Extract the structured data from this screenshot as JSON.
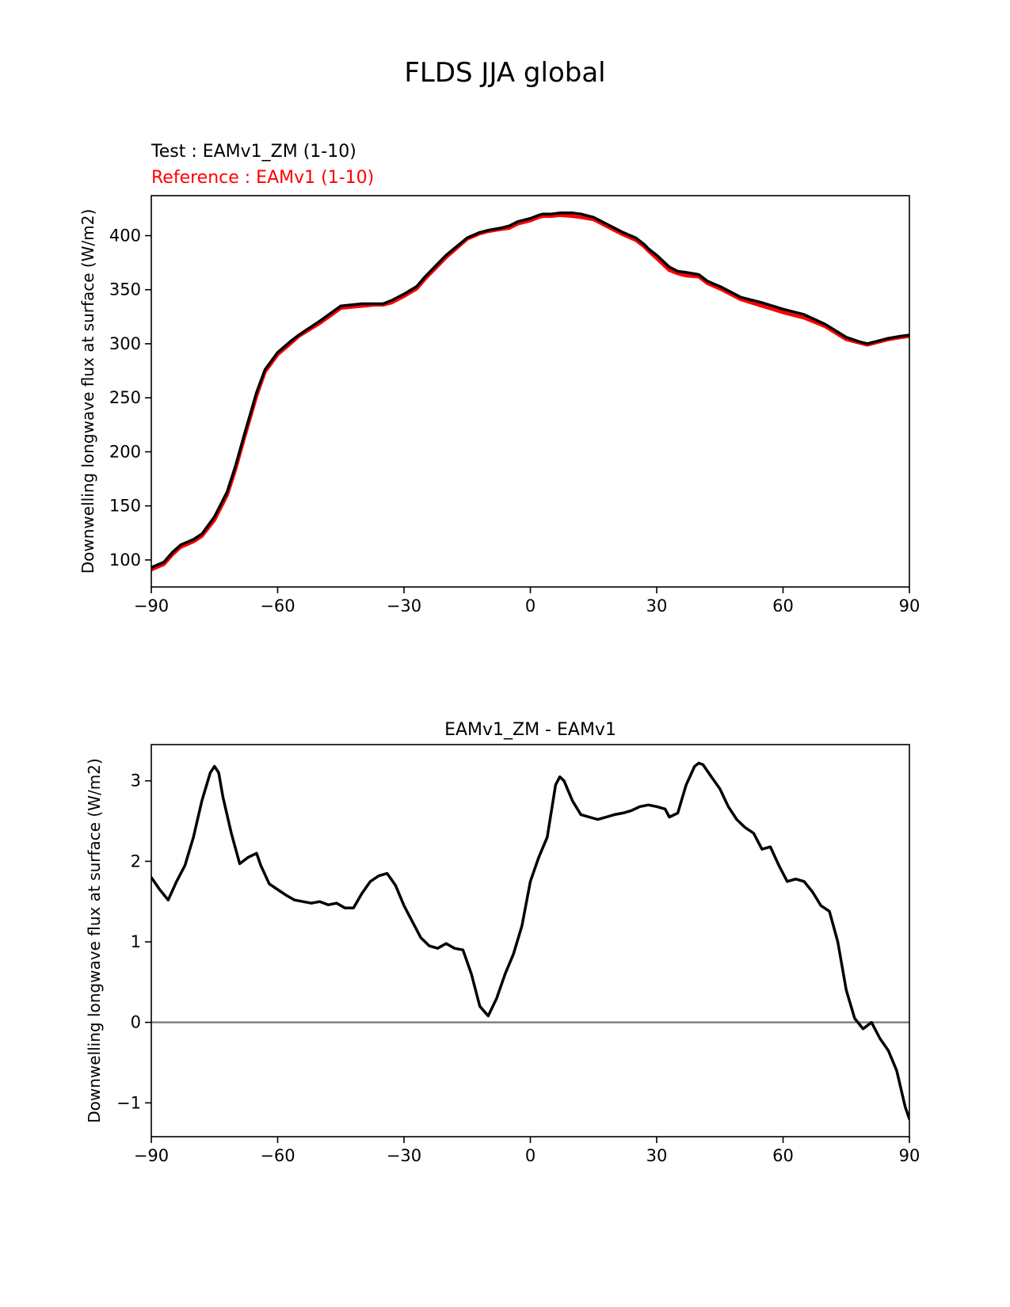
{
  "figure": {
    "title": "FLDS JJA global"
  },
  "chart_data": [
    {
      "type": "line",
      "title_test": "Test : EAMv1_ZM (1-10)",
      "title_reference": "Reference : EAMv1 (1-10)",
      "xlabel": "",
      "ylabel": "Downwelling longwave flux at surface (W/m2)",
      "xlim": [
        -90,
        90
      ],
      "ylim": [
        75,
        437
      ],
      "xticks": [
        -90,
        -60,
        -30,
        0,
        30,
        60,
        90
      ],
      "xtick_labels": [
        "−90",
        "−60",
        "−30",
        "0",
        "30",
        "60",
        "90"
      ],
      "yticks": [
        100,
        150,
        200,
        250,
        300,
        350,
        400
      ],
      "ytick_labels": [
        "100",
        "150",
        "200",
        "250",
        "300",
        "350",
        "400"
      ],
      "x": [
        -90,
        -87,
        -85,
        -83,
        -80,
        -78,
        -75,
        -72,
        -70,
        -68,
        -65,
        -63,
        -60,
        -57,
        -55,
        -50,
        -45,
        -40,
        -37,
        -35,
        -33,
        -30,
        -27,
        -25,
        -20,
        -15,
        -12,
        -10,
        -7,
        -5,
        -3,
        0,
        2,
        3,
        5,
        7,
        10,
        12,
        15,
        18,
        20,
        22,
        25,
        27,
        28,
        30,
        33,
        35,
        37,
        40,
        42,
        45,
        50,
        55,
        60,
        65,
        70,
        75,
        78,
        80,
        82,
        85,
        88,
        90
      ],
      "series": [
        {
          "name": "Test : EAMv1_ZM (1-10)",
          "color": "#000000",
          "values": [
            93,
            98,
            107,
            114,
            119,
            124,
            140,
            163,
            187,
            215,
            255,
            276,
            292,
            302,
            308,
            321,
            335,
            337,
            337,
            337,
            340,
            346,
            353,
            362,
            382,
            398,
            403,
            405,
            407,
            409,
            413,
            416,
            419,
            420,
            420,
            421,
            421,
            420,
            417,
            411,
            407,
            403,
            398,
            392,
            388,
            382,
            371,
            367,
            366,
            364,
            358,
            353,
            343,
            338,
            332,
            327,
            318,
            306,
            302,
            300,
            302,
            305,
            307,
            308
          ]
        },
        {
          "name": "Reference : EAMv1 (1-10)",
          "color": "#ff0000",
          "values": [
            91,
            96,
            105,
            112,
            117,
            122,
            137,
            160,
            184,
            212,
            252,
            274,
            290,
            300,
            307,
            319,
            333,
            335,
            336,
            336,
            338,
            344,
            351,
            360,
            380,
            397,
            402,
            404,
            406,
            407,
            411,
            414,
            417,
            418,
            418,
            419,
            418,
            417,
            415,
            409,
            405,
            401,
            396,
            390,
            386,
            379,
            368,
            365,
            363,
            362,
            356,
            351,
            341,
            335,
            329,
            324,
            316,
            304,
            301,
            299,
            301,
            304,
            306,
            307
          ]
        }
      ]
    },
    {
      "type": "line",
      "title": "EAMv1_ZM - EAMv1",
      "xlabel": "",
      "ylabel": "Downwelling longwave flux at surface (W/m2)",
      "xlim": [
        -90,
        90
      ],
      "ylim": [
        -1.42,
        3.45
      ],
      "xticks": [
        -90,
        -60,
        -30,
        0,
        30,
        60,
        90
      ],
      "xtick_labels": [
        "−90",
        "−60",
        "−30",
        "0",
        "30",
        "60",
        "90"
      ],
      "yticks": [
        -1,
        0,
        1,
        2,
        3
      ],
      "ytick_labels": [
        "−1",
        "0",
        "1",
        "2",
        "3"
      ],
      "zero_line": {
        "value": 0,
        "color": "#808080"
      },
      "x": [
        -90,
        -88,
        -86,
        -84,
        -82,
        -80,
        -78,
        -76,
        -75,
        -74,
        -73,
        -71,
        -69,
        -67,
        -65,
        -64,
        -62,
        -60,
        -58,
        -56,
        -54,
        -52,
        -50,
        -48,
        -46,
        -44,
        -42,
        -40,
        -38,
        -36,
        -34,
        -32,
        -30,
        -28,
        -26,
        -24,
        -22,
        -20,
        -18,
        -16,
        -14,
        -12,
        -10,
        -8,
        -6,
        -4,
        -2,
        0,
        2,
        4,
        6,
        7,
        8,
        10,
        12,
        14,
        16,
        18,
        20,
        22,
        24,
        26,
        28,
        30,
        32,
        33,
        35,
        37,
        39,
        40,
        41,
        43,
        45,
        47,
        49,
        51,
        53,
        55,
        57,
        59,
        61,
        63,
        65,
        67,
        69,
        71,
        73,
        75,
        77,
        79,
        81,
        83,
        85,
        87,
        89,
        90
      ],
      "series": [
        {
          "name": "EAMv1_ZM - EAMv1",
          "color": "#000000",
          "values": [
            1.8,
            1.65,
            1.52,
            1.75,
            1.95,
            2.3,
            2.75,
            3.1,
            3.18,
            3.1,
            2.8,
            2.35,
            1.97,
            2.05,
            2.1,
            1.95,
            1.72,
            1.65,
            1.58,
            1.52,
            1.5,
            1.48,
            1.5,
            1.46,
            1.48,
            1.42,
            1.42,
            1.6,
            1.75,
            1.82,
            1.85,
            1.7,
            1.45,
            1.25,
            1.05,
            0.95,
            0.92,
            0.98,
            0.92,
            0.9,
            0.6,
            0.2,
            0.08,
            0.3,
            0.6,
            0.85,
            1.2,
            1.75,
            2.05,
            2.3,
            2.95,
            3.05,
            3.0,
            2.75,
            2.58,
            2.55,
            2.52,
            2.55,
            2.58,
            2.6,
            2.63,
            2.68,
            2.7,
            2.68,
            2.65,
            2.55,
            2.6,
            2.95,
            3.18,
            3.22,
            3.2,
            3.05,
            2.9,
            2.68,
            2.52,
            2.42,
            2.35,
            2.15,
            2.18,
            1.95,
            1.75,
            1.78,
            1.75,
            1.62,
            1.45,
            1.38,
            1.0,
            0.4,
            0.05,
            -0.08,
            0.0,
            -0.2,
            -0.35,
            -0.6,
            -1.05,
            -1.2
          ]
        }
      ]
    }
  ]
}
